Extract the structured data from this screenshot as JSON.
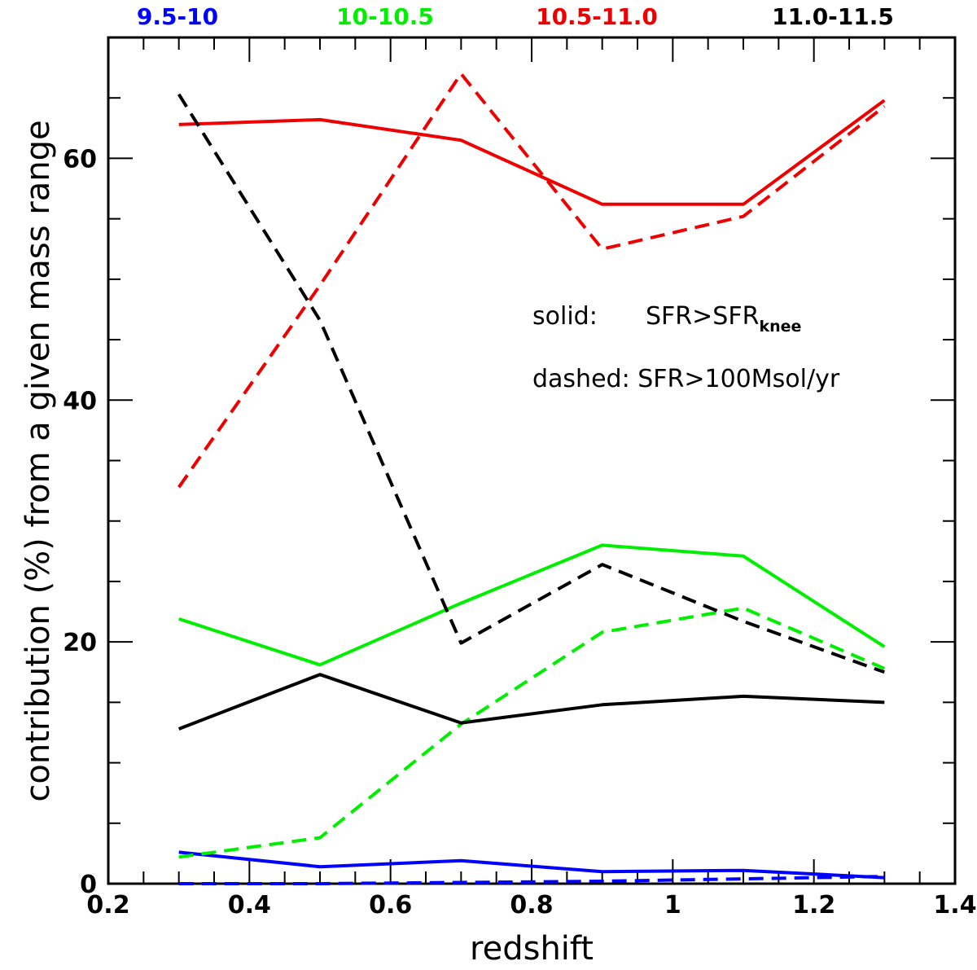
{
  "chart_data": {
    "type": "line",
    "xlabel": "redshift",
    "ylabel": "contribution (%) from a given mass range",
    "xlim": [
      0.2,
      1.4
    ],
    "ylim": [
      0,
      70
    ],
    "x_ticks": [
      "0.2",
      "0.4",
      "0.6",
      "0.8",
      "1",
      "1.2",
      "1.4"
    ],
    "y_ticks": [
      "0",
      "20",
      "40",
      "60"
    ],
    "x": [
      0.3,
      0.5,
      0.7,
      0.9,
      1.1,
      1.3
    ],
    "annotations": {
      "solid_prefix": "solid:",
      "solid_main": "SFR>SFR",
      "solid_sub": "knee",
      "dashed": "dashed: SFR>100Msol/yr"
    },
    "series": [
      {
        "name": "9.5-10",
        "color": "#0000ff",
        "style": "solid",
        "values": [
          2.6,
          1.4,
          1.9,
          1.0,
          1.1,
          0.5
        ]
      },
      {
        "name": "9.5-10",
        "color": "#0000ff",
        "style": "dashed",
        "values": [
          0.0,
          0.0,
          0.1,
          0.2,
          0.4,
          0.6
        ]
      },
      {
        "name": "10-10.5",
        "color": "#00ee00",
        "style": "solid",
        "values": [
          21.9,
          18.1,
          23.2,
          28.0,
          27.1,
          19.6
        ]
      },
      {
        "name": "10-10.5",
        "color": "#00ee00",
        "style": "dashed",
        "values": [
          2.2,
          3.8,
          13.2,
          20.8,
          22.8,
          17.8
        ]
      },
      {
        "name": "10.5-11.0",
        "color": "#ee0000",
        "style": "solid",
        "values": [
          62.8,
          63.2,
          61.5,
          56.2,
          56.2,
          64.8
        ]
      },
      {
        "name": "10.5-11.0",
        "color": "#ee0000",
        "style": "dashed",
        "values": [
          32.8,
          49.5,
          67.0,
          52.5,
          55.2,
          64.3
        ]
      },
      {
        "name": "11.0-11.5",
        "color": "#000000",
        "style": "solid",
        "values": [
          12.8,
          17.3,
          13.3,
          14.8,
          15.5,
          15.0
        ]
      },
      {
        "name": "11.0-11.5",
        "color": "#000000",
        "style": "dashed",
        "values": [
          65.3,
          46.6,
          19.9,
          26.4,
          21.7,
          17.5
        ]
      }
    ],
    "legend": [
      {
        "label": "9.5-10",
        "color": "#0000ff"
      },
      {
        "label": "10-10.5",
        "color": "#00ee00"
      },
      {
        "label": "10.5-11.0",
        "color": "#ee0000"
      },
      {
        "label": "11.0-11.5",
        "color": "#000000"
      }
    ]
  }
}
